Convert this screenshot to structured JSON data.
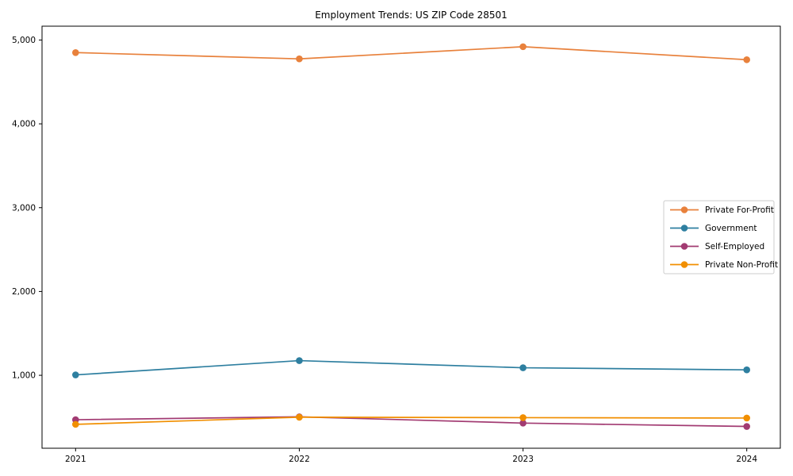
{
  "chart_data": {
    "type": "line",
    "title": "Employment Trends: US ZIP Code 28501",
    "xlabel": "",
    "ylabel": "",
    "x": [
      2021,
      2022,
      2023,
      2024
    ],
    "x_tick_labels": [
      "2021",
      "2022",
      "2023",
      "2024"
    ],
    "y_ticks": [
      1000,
      2000,
      3000,
      4000,
      5000
    ],
    "y_tick_labels": [
      "1,000",
      "2,000",
      "3,000",
      "4,000",
      "5,000"
    ],
    "xlim": [
      2020.85,
      2024.15
    ],
    "ylim": [
      130,
      5165
    ],
    "grid": false,
    "legend": {
      "position": "center right",
      "border": true
    },
    "series": [
      {
        "name": "Private For-Profit",
        "color": "#E8813C",
        "marker": "circle",
        "values": [
          4850,
          4775,
          4920,
          4765
        ]
      },
      {
        "name": "Government",
        "color": "#2E7FA0",
        "marker": "circle",
        "values": [
          1005,
          1175,
          1090,
          1065
        ]
      },
      {
        "name": "Self-Employed",
        "color": "#A23B72",
        "marker": "circle",
        "values": [
          470,
          505,
          430,
          390
        ]
      },
      {
        "name": "Private Non-Profit",
        "color": "#F18F01",
        "marker": "circle",
        "values": [
          415,
          500,
          495,
          490
        ]
      }
    ]
  },
  "figure": {
    "background": "#ffffff",
    "axis_color": "#000000",
    "text_color": "#000000",
    "legend_background": "#ffffff",
    "legend_border": "#cccccc"
  }
}
